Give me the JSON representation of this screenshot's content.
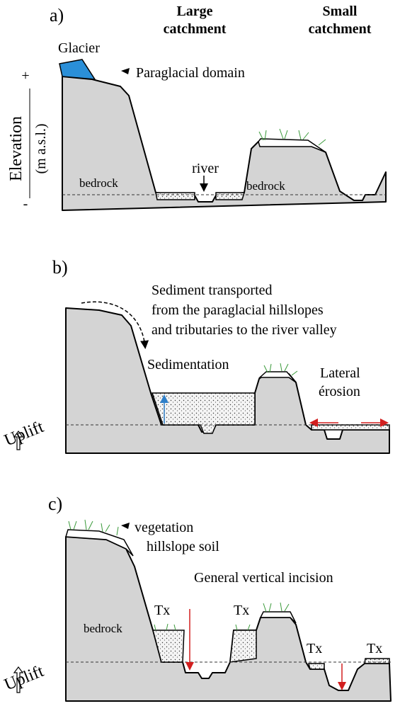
{
  "panels": [
    {
      "label": "a)",
      "headers": [
        [
          "Large",
          "catchment"
        ],
        [
          "Small",
          "catchment"
        ]
      ],
      "glacier": "Glacier",
      "paraglacial": "Paraglacial domain",
      "axis": {
        "plus": "+",
        "minus": "-",
        "title": "Elevation",
        "unit": "(m a.s.l.)"
      },
      "labels": [
        "bedrock",
        "river",
        "bedrock"
      ]
    },
    {
      "label": "b)",
      "note": [
        "Sediment transported",
        "from the paraglacial hillslopes",
        "and tributaries to the river valley"
      ],
      "sedimentation": "Sedimentation",
      "lateral": [
        "Lateral",
        "érosion"
      ],
      "uplift": "Uplift"
    },
    {
      "label": "c)",
      "vegetation": "vegetation",
      "soil": "hillslope soil",
      "incision": "General vertical incision",
      "terraces": [
        "Tx",
        "Tx",
        "Tx",
        "Tx"
      ],
      "bedrock": "bedrock",
      "uplift": "Uplift"
    }
  ]
}
